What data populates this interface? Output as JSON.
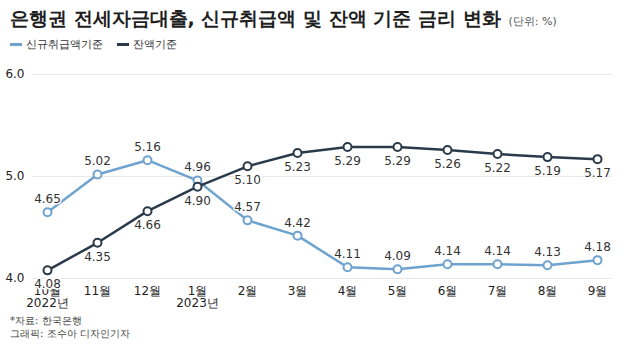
{
  "chart_data": {
    "type": "line",
    "title": "은행권 전세자금대출, 신규취급액 및 잔액 기준 금리 변화",
    "subtitle": "(단위: %)",
    "caption": [
      "*자료: 한국은행",
      "그래픽: 조수아 디자인기자"
    ],
    "categories": [
      "10월\n2022년",
      "11월",
      "12월",
      "1월\n2023년",
      "2월",
      "3월",
      "4월",
      "5월",
      "6월",
      "7월",
      "8월",
      "9월"
    ],
    "series": [
      {
        "name": "신규취급액기준",
        "color": "#6fa3cf",
        "values": [
          4.65,
          5.02,
          5.16,
          4.96,
          4.57,
          4.42,
          4.11,
          4.09,
          4.14,
          4.14,
          4.13,
          4.18
        ],
        "value_labels": [
          "4.65",
          "5.02",
          "5.16",
          "4.96",
          "4.57",
          "4.42",
          "4.11",
          "4.09",
          "4.14",
          "4.14",
          "4.13",
          "4.18"
        ]
      },
      {
        "name": "잔액기준",
        "color": "#2b3a4a",
        "values": [
          4.08,
          4.35,
          4.66,
          4.9,
          5.1,
          5.23,
          5.29,
          5.29,
          5.26,
          5.22,
          5.19,
          5.17
        ],
        "value_labels": [
          "4.08",
          "4.35",
          "4.66",
          "4.90",
          "5.10",
          "5.23",
          "5.29",
          "5.29",
          "5.26",
          "5.22",
          "5.19",
          "5.17"
        ]
      }
    ],
    "ylim": [
      4,
      6
    ],
    "yticks": [
      4,
      5,
      6
    ],
    "grid": true,
    "legend": "top-left",
    "marker": "circle",
    "data_labels": true
  }
}
